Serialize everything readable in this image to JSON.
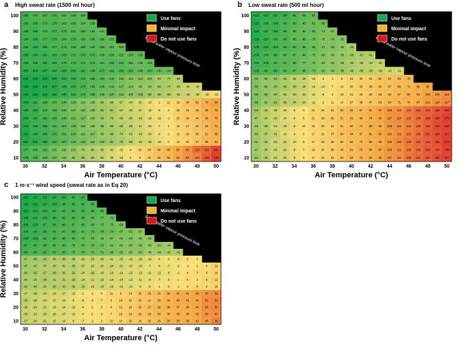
{
  "chart_data": [
    {
      "type": "heatmap",
      "panel_label": "a",
      "title": "High sweat rate (1500 ml hour)",
      "xlabel": "Air Temperature (°C)",
      "ylabel": "Relative Humidity (%)",
      "x_ticks": [
        "30",
        "32",
        "34",
        "36",
        "38",
        "40",
        "42",
        "44",
        "46",
        "48",
        "50"
      ],
      "y_ticks": [
        "100",
        "90",
        "80",
        "70",
        "60",
        "50",
        "40",
        "30",
        "20",
        "10"
      ],
      "x_range": [
        30,
        50
      ],
      "y_range": [
        5,
        100
      ],
      "legend": [
        {
          "label": "Use fans",
          "color": "#1aa64a"
        },
        {
          "label": "Minimal impact",
          "color": "#f5b335"
        },
        {
          "label": "Do not use fans",
          "color": "#d7191c"
        }
      ],
      "annotation": "6 kPa water vapour pressure limit",
      "grid_note": "cell values range from about -217 (strong benefit, green) to about 160 (harm, red); cells above the 6 kPa limit are black"
    },
    {
      "type": "heatmap",
      "panel_label": "b",
      "title": "Low sweat rate (500 ml hour)",
      "xlabel": "Air Temperature (°C)",
      "ylabel": "Relative Humidity (%)",
      "x_ticks": [
        "30",
        "32",
        "34",
        "36",
        "38",
        "40",
        "42",
        "44",
        "46",
        "48",
        "50"
      ],
      "y_ticks": [
        "100",
        "90",
        "80",
        "70",
        "60",
        "50",
        "40",
        "30",
        "20",
        "10"
      ],
      "x_range": [
        30,
        50
      ],
      "y_range": [
        5,
        100
      ],
      "legend": [
        {
          "label": "Use fans",
          "color": "#1aa64a"
        },
        {
          "label": "Minimal impact",
          "color": "#f5b335"
        },
        {
          "label": "Do not use fans",
          "color": "#d7191c"
        }
      ],
      "annotation": "6 kPa water vapour pressure limit",
      "grid_note": "cell values range from about -124 (benefit) to about 190 (harm)"
    },
    {
      "type": "heatmap",
      "panel_label": "c",
      "title": "1 m·s⁻¹ wind speed (sweat rate as in Eq 20)",
      "xlabel": "Air Temperature (°C)",
      "ylabel": "Relative Humidity (%)",
      "x_ticks": [
        "30",
        "32",
        "34",
        "36",
        "38",
        "40",
        "42",
        "44",
        "46",
        "48",
        "50"
      ],
      "y_ticks": [
        "100",
        "90",
        "80",
        "70",
        "60",
        "50",
        "40",
        "30",
        "20",
        "10"
      ],
      "x_range": [
        30,
        50
      ],
      "y_range": [
        5,
        100
      ],
      "legend": [
        {
          "label": "Use fans",
          "color": "#1aa64a"
        },
        {
          "label": "Minimal impact",
          "color": "#f5b335"
        },
        {
          "label": "Do not use fans",
          "color": "#d7191c"
        }
      ],
      "annotation": "6 kPa water vapour pressure limit",
      "grid_note": "cell values range from about -115 (benefit) to about 87 (harm)"
    }
  ]
}
